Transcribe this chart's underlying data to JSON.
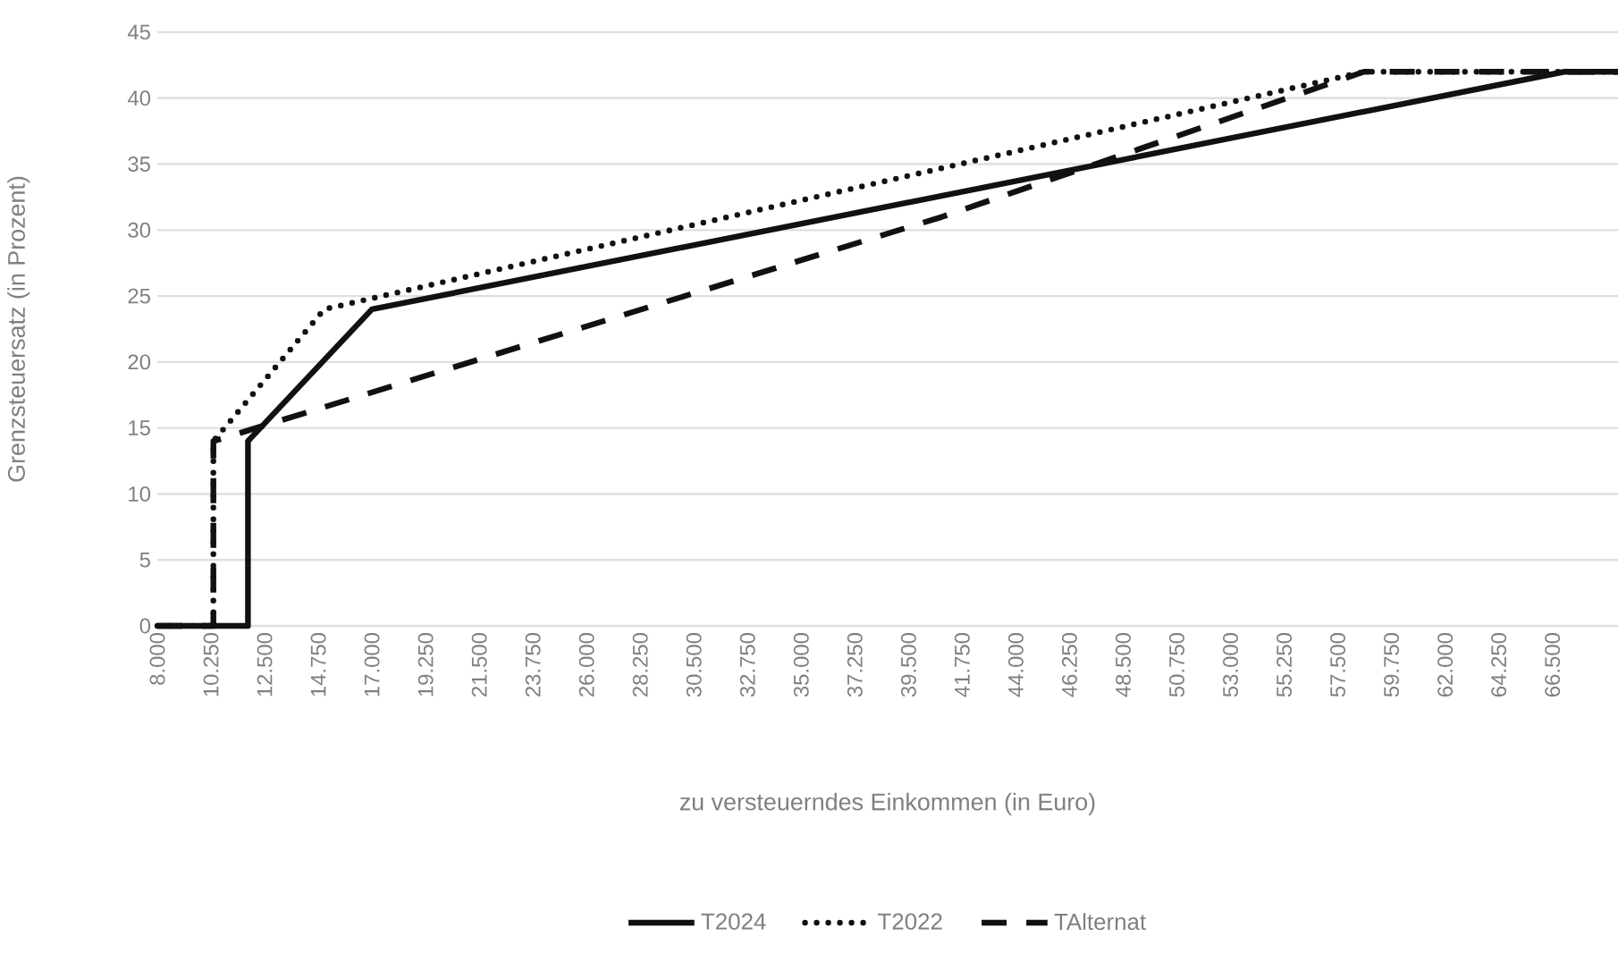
{
  "chart_data": {
    "type": "line",
    "xlabel": "zu versteuerndes Einkommen (in Euro)",
    "ylabel": "Grenzsteuersatz (in Prozent)",
    "xlim": [
      8000,
      69250
    ],
    "xticks": [
      {
        "value": 8000,
        "label": "8.000"
      },
      {
        "value": 10250,
        "label": "10.250"
      },
      {
        "value": 12500,
        "label": "12.500"
      },
      {
        "value": 14750,
        "label": "14.750"
      },
      {
        "value": 17000,
        "label": "17.000"
      },
      {
        "value": 19250,
        "label": "19.250"
      },
      {
        "value": 21500,
        "label": "21.500"
      },
      {
        "value": 23750,
        "label": "23.750"
      },
      {
        "value": 26000,
        "label": "26.000"
      },
      {
        "value": 28250,
        "label": "28.250"
      },
      {
        "value": 30500,
        "label": "30.500"
      },
      {
        "value": 32750,
        "label": "32.750"
      },
      {
        "value": 35000,
        "label": "35.000"
      },
      {
        "value": 37250,
        "label": "37.250"
      },
      {
        "value": 39500,
        "label": "39.500"
      },
      {
        "value": 41750,
        "label": "41.750"
      },
      {
        "value": 44000,
        "label": "44.000"
      },
      {
        "value": 46250,
        "label": "46.250"
      },
      {
        "value": 48500,
        "label": "48.500"
      },
      {
        "value": 50750,
        "label": "50.750"
      },
      {
        "value": 53000,
        "label": "53.000"
      },
      {
        "value": 55250,
        "label": "55.250"
      },
      {
        "value": 57500,
        "label": "57.500"
      },
      {
        "value": 59750,
        "label": "59.750"
      },
      {
        "value": 62000,
        "label": "62.000"
      },
      {
        "value": 64250,
        "label": "64.250"
      },
      {
        "value": 66500,
        "label": "66.500"
      }
    ],
    "ylim": [
      0,
      45
    ],
    "yticks": [
      0,
      5,
      10,
      15,
      20,
      25,
      30,
      35,
      40,
      45
    ],
    "grid": "y",
    "legend": "bottom",
    "marker": "none",
    "series": [
      {
        "name": "T2024",
        "color": "#111111",
        "line_style": "solid",
        "x": [
          8000,
          11800,
          11800,
          17000,
          67000,
          69250
        ],
        "values": [
          0,
          0,
          14,
          24,
          42,
          42
        ]
      },
      {
        "name": "T2022",
        "color": "#111111",
        "line_style": "dotted",
        "x": [
          8000,
          10350,
          10350,
          15000,
          58600,
          69250
        ],
        "values": [
          0,
          0,
          14,
          24,
          42,
          42
        ]
      },
      {
        "name": "TAlternat",
        "color": "#111111",
        "line_style": "dashed",
        "x": [
          8000,
          10350,
          10350,
          40900,
          58600,
          69250
        ],
        "values": [
          0,
          0,
          14,
          31,
          42,
          42
        ]
      }
    ]
  }
}
